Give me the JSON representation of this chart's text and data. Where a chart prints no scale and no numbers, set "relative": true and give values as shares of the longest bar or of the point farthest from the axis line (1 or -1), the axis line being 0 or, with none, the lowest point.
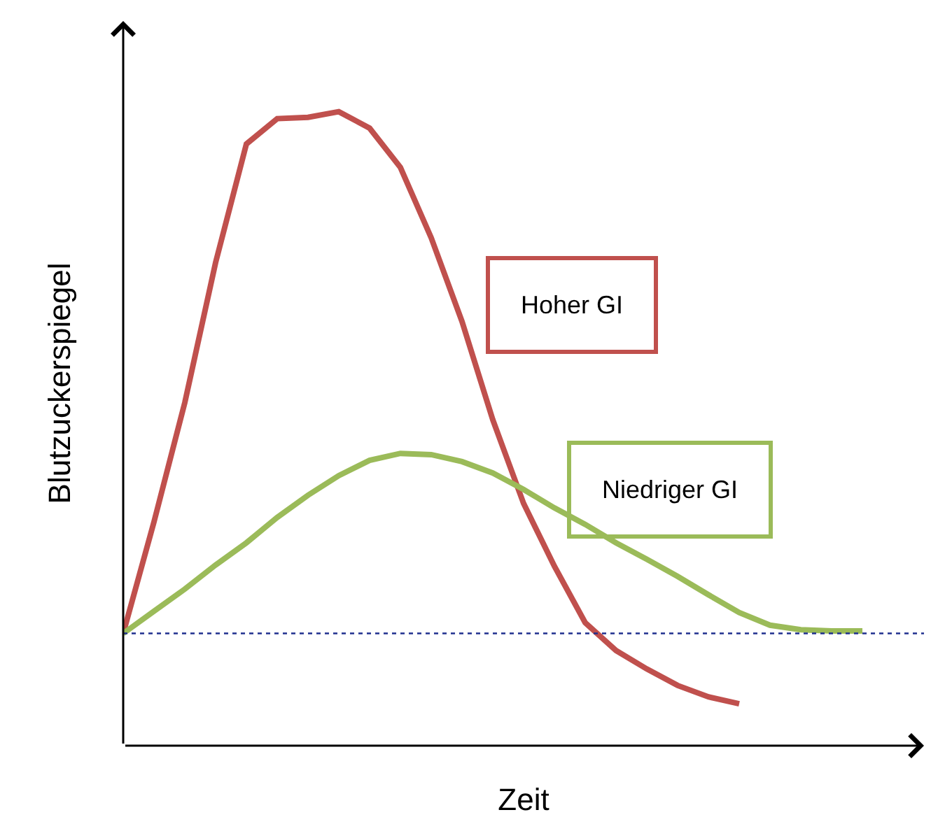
{
  "chart_data": {
    "type": "line",
    "relative": true,
    "xlabel": "Zeit",
    "ylabel": "Blutzuckerspiegel",
    "legend": false,
    "marker": "none",
    "line_style": "solid",
    "categories": [
      null,
      null,
      null,
      null,
      null,
      null,
      null,
      null,
      null,
      null,
      null,
      null,
      null,
      null,
      null,
      null,
      null,
      null,
      null,
      null,
      null,
      null,
      null,
      null,
      null
    ],
    "series": [
      {
        "name": "Hoher GI",
        "color": "#c0504d",
        "values": [
          0.177,
          0.353,
          0.541,
          0.762,
          0.949,
          0.989,
          0.991,
          1.0,
          0.974,
          0.912,
          0.801,
          0.669,
          0.514,
          0.382,
          0.283,
          0.194,
          0.15,
          0.121,
          0.095,
          0.077,
          0.066,
          null,
          null,
          null,
          null
        ]
      },
      {
        "name": "Niedriger GI",
        "color": "#9bbb59",
        "values": [
          0.177,
          0.212,
          0.247,
          0.285,
          0.32,
          0.36,
          0.395,
          0.426,
          0.45,
          0.461,
          0.459,
          0.448,
          0.43,
          0.404,
          0.375,
          0.349,
          0.32,
          0.294,
          0.267,
          0.238,
          0.21,
          0.19,
          0.183,
          0.181,
          0.181
        ]
      }
    ],
    "ref_lines": [
      {
        "axis": "y",
        "value": 0.177,
        "color": "#1f2f8f",
        "line_style": "dotted"
      }
    ]
  }
}
